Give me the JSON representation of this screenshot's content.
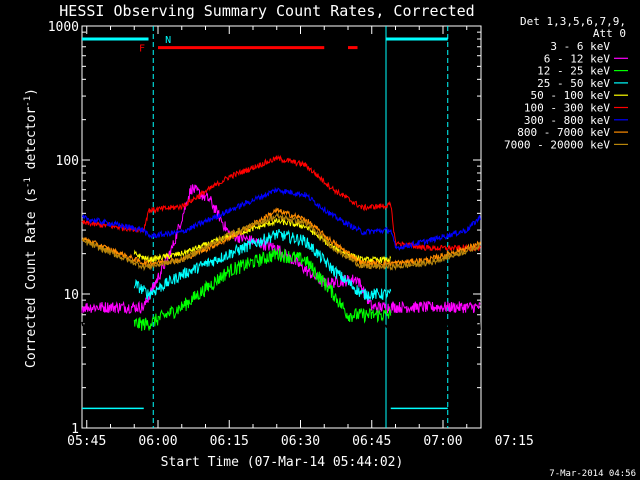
{
  "chart_data": {
    "type": "line",
    "title": "HESSI Observing Summary Count Rates, Corrected",
    "ylabel_parts": [
      "Corrected Count Rate (s",
      "-1",
      " detector",
      "-1",
      ")"
    ],
    "xlabel": "Start Time (07-Mar-14 05:44:02)",
    "footer": "7-Mar-2014 04:56",
    "yscale": "log",
    "ylim": [
      1,
      1000
    ],
    "ytick_labels": [
      "1",
      "10",
      "100",
      "1000"
    ],
    "xlim_minutes": [
      -1,
      83
    ],
    "xtick_labels": [
      "05:45",
      "06:00",
      "06:15",
      "06:30",
      "06:45",
      "07:00",
      "07:15"
    ],
    "legend": {
      "header": [
        "Det 1,3,5,6,7,9,",
        "Att 0"
      ],
      "placement": "right"
    },
    "flags": {
      "F_label": "F",
      "N_label": "N"
    },
    "series": [
      {
        "name": "3 - 6 keV",
        "color": "#000000",
        "base": [
          [
            -1,
            6
          ],
          [
            12,
            6
          ],
          [
            20,
            45
          ],
          [
            24,
            62
          ],
          [
            30,
            35
          ],
          [
            40,
            20
          ],
          [
            50,
            8
          ],
          [
            60,
            6
          ],
          [
            66,
            5
          ],
          [
            70,
            6
          ],
          [
            83,
            6
          ]
        ],
        "noise": 0.1
      },
      {
        "name": "6 - 12 keV",
        "color": "#ff00ff",
        "base": [
          [
            -1,
            8
          ],
          [
            12,
            8
          ],
          [
            18,
            22
          ],
          [
            22,
            62
          ],
          [
            26,
            50
          ],
          [
            30,
            28
          ],
          [
            40,
            22
          ],
          [
            50,
            12
          ],
          [
            57,
            13
          ],
          [
            60,
            8
          ],
          [
            66,
            8
          ],
          [
            70,
            8
          ],
          [
            83,
            8
          ]
        ],
        "noise": 0.1
      },
      {
        "name": "12 - 25 keV",
        "color": "#00ff00",
        "base": [
          [
            10,
            6
          ],
          [
            13,
            6
          ],
          [
            20,
            8
          ],
          [
            30,
            15
          ],
          [
            40,
            20
          ],
          [
            46,
            18
          ],
          [
            52,
            10
          ],
          [
            55,
            7
          ],
          [
            62,
            7
          ],
          [
            64,
            7
          ]
        ],
        "noise": 0.12
      },
      {
        "name": "25 - 50 keV",
        "color": "#00ffff",
        "base": [
          [
            10,
            12
          ],
          [
            13,
            10
          ],
          [
            20,
            14
          ],
          [
            30,
            20
          ],
          [
            40,
            28
          ],
          [
            46,
            25
          ],
          [
            52,
            15
          ],
          [
            58,
            10
          ],
          [
            64,
            10
          ]
        ],
        "noise": 0.1
      },
      {
        "name": "50 - 100 keV",
        "color": "#ffff00",
        "base": [
          [
            10,
            20
          ],
          [
            13,
            18
          ],
          [
            20,
            20
          ],
          [
            30,
            27
          ],
          [
            40,
            35
          ],
          [
            46,
            32
          ],
          [
            52,
            22
          ],
          [
            58,
            18
          ],
          [
            64,
            18
          ]
        ],
        "noise": 0.05
      },
      {
        "name": "100 - 300 keV",
        "color": "#ff0000",
        "base": [
          [
            -1,
            34
          ],
          [
            12,
            30
          ],
          [
            13,
            42
          ],
          [
            20,
            45
          ],
          [
            30,
            75
          ],
          [
            40,
            103
          ],
          [
            46,
            92
          ],
          [
            52,
            60
          ],
          [
            58,
            44
          ],
          [
            64,
            46
          ],
          [
            65,
            24
          ],
          [
            72,
            22
          ],
          [
            83,
            22
          ]
        ],
        "noise": 0.05
      },
      {
        "name": "300 - 800 keV",
        "color": "#0000ff",
        "base": [
          [
            -1,
            37
          ],
          [
            12,
            30
          ],
          [
            13,
            27
          ],
          [
            20,
            29
          ],
          [
            30,
            42
          ],
          [
            40,
            60
          ],
          [
            46,
            55
          ],
          [
            52,
            38
          ],
          [
            58,
            29
          ],
          [
            64,
            30
          ],
          [
            65,
            22
          ],
          [
            72,
            25
          ],
          [
            80,
            30
          ],
          [
            83,
            38
          ]
        ],
        "noise": 0.05
      },
      {
        "name": "800 - 7000 keV",
        "color": "#ff8c00",
        "base": [
          [
            -1,
            26
          ],
          [
            12,
            17
          ],
          [
            13,
            17
          ],
          [
            20,
            18
          ],
          [
            30,
            26
          ],
          [
            40,
            42
          ],
          [
            46,
            36
          ],
          [
            52,
            24
          ],
          [
            58,
            17
          ],
          [
            64,
            17
          ],
          [
            65,
            17
          ],
          [
            72,
            18
          ],
          [
            80,
            22
          ],
          [
            83,
            24
          ]
        ],
        "noise": 0.05
      },
      {
        "name": "7000 - 20000 keV",
        "color": "#b8860b",
        "base": [
          [
            -1,
            25
          ],
          [
            12,
            16
          ],
          [
            13,
            16
          ],
          [
            20,
            18
          ],
          [
            30,
            28
          ],
          [
            40,
            38
          ],
          [
            46,
            34
          ],
          [
            52,
            22
          ],
          [
            58,
            16
          ],
          [
            64,
            16
          ],
          [
            65,
            16
          ],
          [
            72,
            17
          ],
          [
            80,
            21
          ],
          [
            83,
            23
          ]
        ],
        "noise": 0.05
      }
    ]
  }
}
